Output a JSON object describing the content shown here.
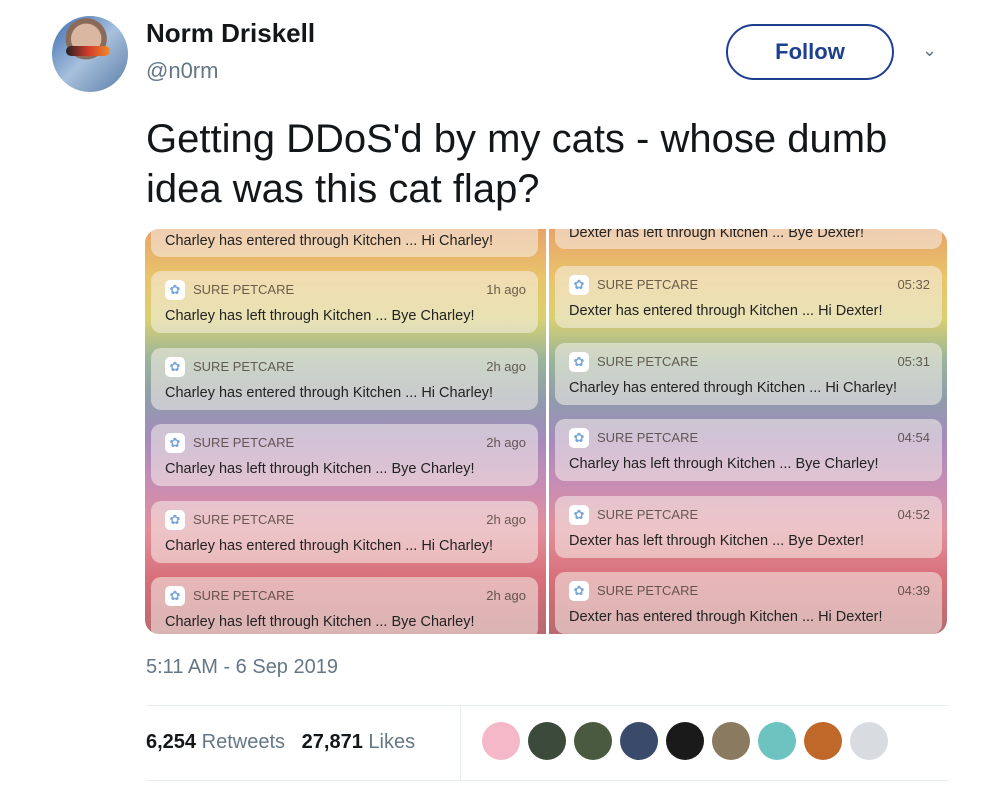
{
  "author": {
    "name": "Norm Driskell",
    "handle": "@n0rm"
  },
  "follow_label": "Follow",
  "tweet_text": "Getting DDoS'd by my cats - whose dumb idea was this cat flap?",
  "media": {
    "left": {
      "partial": "Charley has entered through Kitchen ... Hi Charley!",
      "cards": [
        {
          "app": "SURE PETCARE",
          "time": "1h ago",
          "msg": "Charley has left through Kitchen ... Bye Charley!"
        },
        {
          "app": "SURE PETCARE",
          "time": "2h ago",
          "msg": "Charley has entered through Kitchen ... Hi Charley!"
        },
        {
          "app": "SURE PETCARE",
          "time": "2h ago",
          "msg": "Charley has left through Kitchen ... Bye Charley!"
        },
        {
          "app": "SURE PETCARE",
          "time": "2h ago",
          "msg": "Charley has entered through Kitchen ... Hi Charley!"
        },
        {
          "app": "SURE PETCARE",
          "time": "2h ago",
          "msg": "Charley has left through Kitchen ... Bye Charley!"
        }
      ]
    },
    "right": {
      "partial": "Dexter has left through Kitchen ... Bye Dexter!",
      "cards": [
        {
          "app": "SURE PETCARE",
          "time": "05:32",
          "msg": "Dexter has entered through Kitchen ... Hi Dexter!"
        },
        {
          "app": "SURE PETCARE",
          "time": "05:31",
          "msg": "Charley has entered through Kitchen ... Hi Charley!"
        },
        {
          "app": "SURE PETCARE",
          "time": "04:54",
          "msg": "Charley has left through Kitchen ... Bye Charley!"
        },
        {
          "app": "SURE PETCARE",
          "time": "04:52",
          "msg": "Dexter has left through Kitchen ... Bye Dexter!"
        },
        {
          "app": "SURE PETCARE",
          "time": "04:39",
          "msg": "Dexter has entered through Kitchen ... Hi Dexter!"
        }
      ]
    }
  },
  "timestamp": "5:11 AM - 6 Sep 2019",
  "stats": {
    "retweets": "6,254",
    "retweets_label": "Retweets",
    "likes": "27,871",
    "likes_label": "Likes"
  },
  "liker_avatar_colors": [
    "#f4b8c8",
    "#3c4a3c",
    "#4a5a40",
    "#3a4a6a",
    "#1a1a1a",
    "#8a7a60",
    "#6cc3c0",
    "#c0672a",
    "#d8dce0"
  ],
  "colors": {
    "accent": "#1c3f8f",
    "muted": "#657786"
  }
}
